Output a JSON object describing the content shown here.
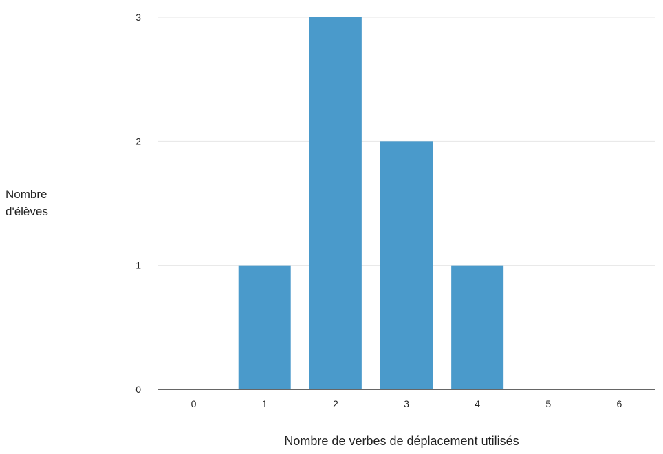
{
  "chart_data": {
    "type": "bar",
    "title": "",
    "xlabel": "Nombre de verbes de déplacement utilisés",
    "ylabel_lines": [
      "Nombre",
      "d'élèves"
    ],
    "categories": [
      "0",
      "1",
      "2",
      "3",
      "4",
      "5",
      "6"
    ],
    "values": [
      0,
      1,
      3,
      2,
      1,
      0,
      0
    ],
    "ylim": [
      0,
      3
    ],
    "yticks": [
      "0",
      "1",
      "2",
      "3"
    ],
    "grid": true,
    "legend": "none",
    "colors": {
      "bar": "#4A9ACB",
      "grid": "#e6e6e6",
      "axis": "#333333",
      "text": "#222222"
    }
  }
}
